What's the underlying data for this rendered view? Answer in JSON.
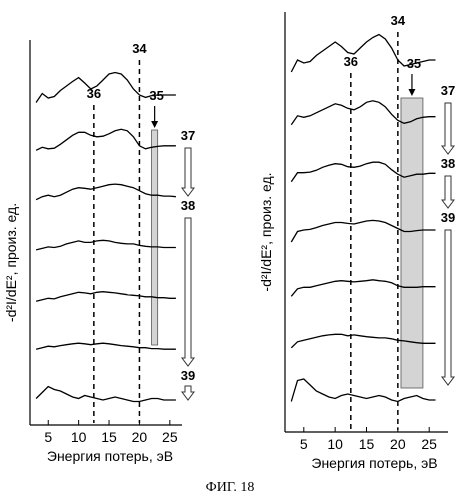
{
  "caption": "ФИГ. 18",
  "chart_data": [
    {
      "type": "line",
      "panel": "left",
      "xlabel": "Энергия потерь, эВ",
      "ylabel": "-d²I/dE², произ. ед.",
      "xlim": [
        2,
        27
      ],
      "xticks": [
        5,
        10,
        15,
        20,
        25
      ],
      "dashed_lines": [
        {
          "x": 12.5,
          "label": "36"
        },
        {
          "x": 20,
          "label": "34"
        }
      ],
      "shaded_band": {
        "x": [
          22,
          23
        ],
        "label": "35"
      },
      "arrow_labels": [
        "37",
        "38",
        "39"
      ],
      "series": [
        {
          "x": [
            3,
            4,
            5,
            6,
            7,
            8,
            9,
            10,
            11,
            12,
            13,
            14,
            15,
            16,
            17,
            18,
            19,
            20,
            21,
            22,
            23,
            24,
            25,
            26
          ],
          "y": [
            0.55,
            0.85,
            0.7,
            0.75,
            0.95,
            1.1,
            1.25,
            1.38,
            1.2,
            1.0,
            1.1,
            1.3,
            1.5,
            1.55,
            1.5,
            1.3,
            1.0,
            0.8,
            0.72,
            0.78,
            0.8,
            0.8,
            0.8,
            0.8
          ]
        },
        {
          "x": [
            3,
            4,
            5,
            6,
            7,
            8,
            9,
            10,
            11,
            12,
            13,
            14,
            15,
            16,
            17,
            18,
            19,
            20,
            21,
            22,
            23,
            24,
            25,
            26
          ],
          "y": [
            0.25,
            0.35,
            0.3,
            0.32,
            0.45,
            0.6,
            0.75,
            0.85,
            0.85,
            0.75,
            0.7,
            0.72,
            0.8,
            0.9,
            0.95,
            0.9,
            0.7,
            0.4,
            0.3,
            0.35,
            0.38,
            0.4,
            0.4,
            0.4
          ]
        },
        {
          "x": [
            3,
            4,
            5,
            6,
            7,
            8,
            9,
            10,
            11,
            12,
            13,
            14,
            15,
            16,
            17,
            18,
            19,
            20,
            21,
            22,
            23,
            24,
            25,
            26
          ],
          "y": [
            0.0,
            0.1,
            0.15,
            0.1,
            0.15,
            0.25,
            0.35,
            0.4,
            0.38,
            0.35,
            0.4,
            0.45,
            0.5,
            0.52,
            0.5,
            0.45,
            0.4,
            0.3,
            0.2,
            0.15,
            0.15,
            0.12,
            0.12,
            0.1
          ]
        },
        {
          "x": [
            3,
            4,
            5,
            6,
            7,
            8,
            9,
            10,
            11,
            12,
            13,
            14,
            15,
            16,
            17,
            18,
            19,
            20,
            21,
            22,
            23,
            24,
            25,
            26
          ],
          "y": [
            -0.3,
            -0.25,
            -0.2,
            -0.22,
            -0.18,
            -0.1,
            -0.05,
            0.0,
            -0.05,
            -0.05,
            0.0,
            0.02,
            0.0,
            -0.05,
            -0.08,
            -0.1,
            -0.1,
            -0.15,
            -0.18,
            -0.2,
            -0.2,
            -0.22,
            -0.22,
            -0.22
          ]
        },
        {
          "x": [
            3,
            4,
            5,
            6,
            7,
            8,
            9,
            10,
            11,
            12,
            13,
            14,
            15,
            16,
            17,
            18,
            19,
            20,
            21,
            22,
            23,
            24,
            25,
            26
          ],
          "y": [
            -0.6,
            -0.55,
            -0.5,
            -0.52,
            -0.45,
            -0.4,
            -0.35,
            -0.3,
            -0.32,
            -0.35,
            -0.3,
            -0.28,
            -0.3,
            -0.32,
            -0.35,
            -0.38,
            -0.4,
            -0.42,
            -0.45,
            -0.45,
            -0.48,
            -0.48,
            -0.5,
            -0.5
          ]
        },
        {
          "x": [
            3,
            4,
            5,
            6,
            7,
            8,
            9,
            10,
            11,
            12,
            13,
            14,
            15,
            16,
            17,
            18,
            19,
            20,
            21,
            22,
            23,
            24,
            25,
            26
          ],
          "y": [
            -0.9,
            -0.85,
            -0.8,
            -0.82,
            -0.78,
            -0.75,
            -0.72,
            -0.7,
            -0.72,
            -0.75,
            -0.72,
            -0.7,
            -0.72,
            -0.75,
            -0.78,
            -0.8,
            -0.82,
            -0.85,
            -0.85,
            -0.88,
            -0.88,
            -0.9,
            -0.9,
            -0.9
          ]
        },
        {
          "x": [
            3,
            4,
            5,
            6,
            7,
            8,
            9,
            10,
            11,
            12,
            13,
            14,
            15,
            16,
            17,
            18,
            19,
            20,
            21,
            22,
            23,
            24,
            25,
            26
          ],
          "y": [
            -1.35,
            -1.15,
            -0.95,
            -1.05,
            -1.1,
            -1.2,
            -1.3,
            -1.35,
            -1.25,
            -1.3,
            -1.35,
            -1.4,
            -1.35,
            -1.3,
            -1.35,
            -1.4,
            -1.45,
            -1.45,
            -1.4,
            -1.35,
            -1.35,
            -1.4,
            -1.4,
            -1.4
          ]
        }
      ]
    },
    {
      "type": "line",
      "panel": "right",
      "xlabel": "Энергия потерь, эВ",
      "ylabel": "-d²I/dE², произ. ед.",
      "xlim": [
        2,
        28
      ],
      "xticks": [
        5,
        10,
        15,
        20,
        25
      ],
      "dashed_lines": [
        {
          "x": 12.5,
          "label": "36"
        },
        {
          "x": 20,
          "label": "34"
        }
      ],
      "shaded_band": {
        "x": [
          20.5,
          24
        ],
        "label": "35"
      },
      "arrow_labels": [
        "37",
        "38",
        "39"
      ],
      "series": [
        {
          "x": [
            3,
            4,
            5,
            6,
            7,
            8,
            9,
            10,
            11,
            12,
            13,
            14,
            15,
            16,
            17,
            18,
            19,
            20,
            21,
            22,
            23,
            24,
            25,
            26
          ],
          "y": [
            0.9,
            1.3,
            1.2,
            1.25,
            1.45,
            1.6,
            1.75,
            1.9,
            1.75,
            1.55,
            1.5,
            1.7,
            1.9,
            2.05,
            2.15,
            2.0,
            1.7,
            1.3,
            1.1,
            1.15,
            1.2,
            1.25,
            1.3,
            1.3
          ]
        },
        {
          "x": [
            3,
            4,
            5,
            6,
            7,
            8,
            9,
            10,
            11,
            12,
            13,
            14,
            15,
            16,
            17,
            18,
            19,
            20,
            21,
            22,
            23,
            24,
            25,
            26
          ],
          "y": [
            0.65,
            0.95,
            0.9,
            0.95,
            1.05,
            1.15,
            1.25,
            1.35,
            1.3,
            1.2,
            1.15,
            1.25,
            1.4,
            1.45,
            1.4,
            1.25,
            1.0,
            0.8,
            0.7,
            0.75,
            0.85,
            0.9,
            0.92,
            0.92
          ]
        },
        {
          "x": [
            3,
            4,
            5,
            6,
            7,
            8,
            9,
            10,
            11,
            12,
            13,
            14,
            15,
            16,
            17,
            18,
            19,
            20,
            21,
            22,
            23,
            24,
            25,
            26
          ],
          "y": [
            0.3,
            0.6,
            0.6,
            0.62,
            0.68,
            0.78,
            0.85,
            0.9,
            0.88,
            0.8,
            0.78,
            0.82,
            0.9,
            0.95,
            0.95,
            0.88,
            0.7,
            0.55,
            0.45,
            0.5,
            0.55,
            0.55,
            0.58,
            0.58
          ]
        },
        {
          "x": [
            3,
            4,
            5,
            6,
            7,
            8,
            9,
            10,
            11,
            12,
            13,
            14,
            15,
            16,
            17,
            18,
            19,
            20,
            21,
            22,
            23,
            24,
            25,
            26
          ],
          "y": [
            -0.1,
            0.25,
            0.3,
            0.32,
            0.38,
            0.45,
            0.5,
            0.55,
            0.55,
            0.52,
            0.5,
            0.55,
            0.6,
            0.62,
            0.6,
            0.55,
            0.45,
            0.35,
            0.25,
            0.25,
            0.28,
            0.3,
            0.3,
            0.3
          ]
        },
        {
          "x": [
            3,
            4,
            5,
            6,
            7,
            8,
            9,
            10,
            11,
            12,
            13,
            14,
            15,
            16,
            17,
            18,
            19,
            20,
            21,
            22,
            23,
            24,
            25,
            26
          ],
          "y": [
            -0.3,
            -0.05,
            0.0,
            0.0,
            0.05,
            0.1,
            0.15,
            0.2,
            0.22,
            0.2,
            0.18,
            0.2,
            0.22,
            0.25,
            0.22,
            0.2,
            0.15,
            0.05,
            0.0,
            0.0,
            0.0,
            0.02,
            0.02,
            0.02
          ]
        },
        {
          "x": [
            3,
            4,
            5,
            6,
            7,
            8,
            9,
            10,
            11,
            12,
            13,
            14,
            15,
            16,
            17,
            18,
            19,
            20,
            21,
            22,
            23,
            24,
            25,
            26
          ],
          "y": [
            -0.55,
            -0.35,
            -0.3,
            -0.25,
            -0.2,
            -0.15,
            -0.12,
            -0.1,
            -0.1,
            -0.15,
            -0.12,
            -0.15,
            -0.18,
            -0.2,
            -0.22,
            -0.22,
            -0.25,
            -0.3,
            -0.32,
            -0.35,
            -0.38,
            -0.4,
            -0.4,
            -0.4
          ]
        },
        {
          "x": [
            3,
            4,
            5,
            6,
            7,
            8,
            9,
            10,
            11,
            12,
            13,
            14,
            15,
            16,
            17,
            18,
            19,
            20,
            21,
            22,
            23,
            24,
            25,
            26
          ],
          "y": [
            -1.3,
            -0.6,
            -0.55,
            -0.75,
            -0.95,
            -1.05,
            -1.15,
            -1.2,
            -1.1,
            -1.05,
            -1.1,
            -1.15,
            -1.2,
            -1.15,
            -1.1,
            -1.15,
            -1.25,
            -1.3,
            -1.2,
            -1.15,
            -1.1,
            -1.2,
            -1.25,
            -1.25
          ]
        }
      ]
    }
  ]
}
